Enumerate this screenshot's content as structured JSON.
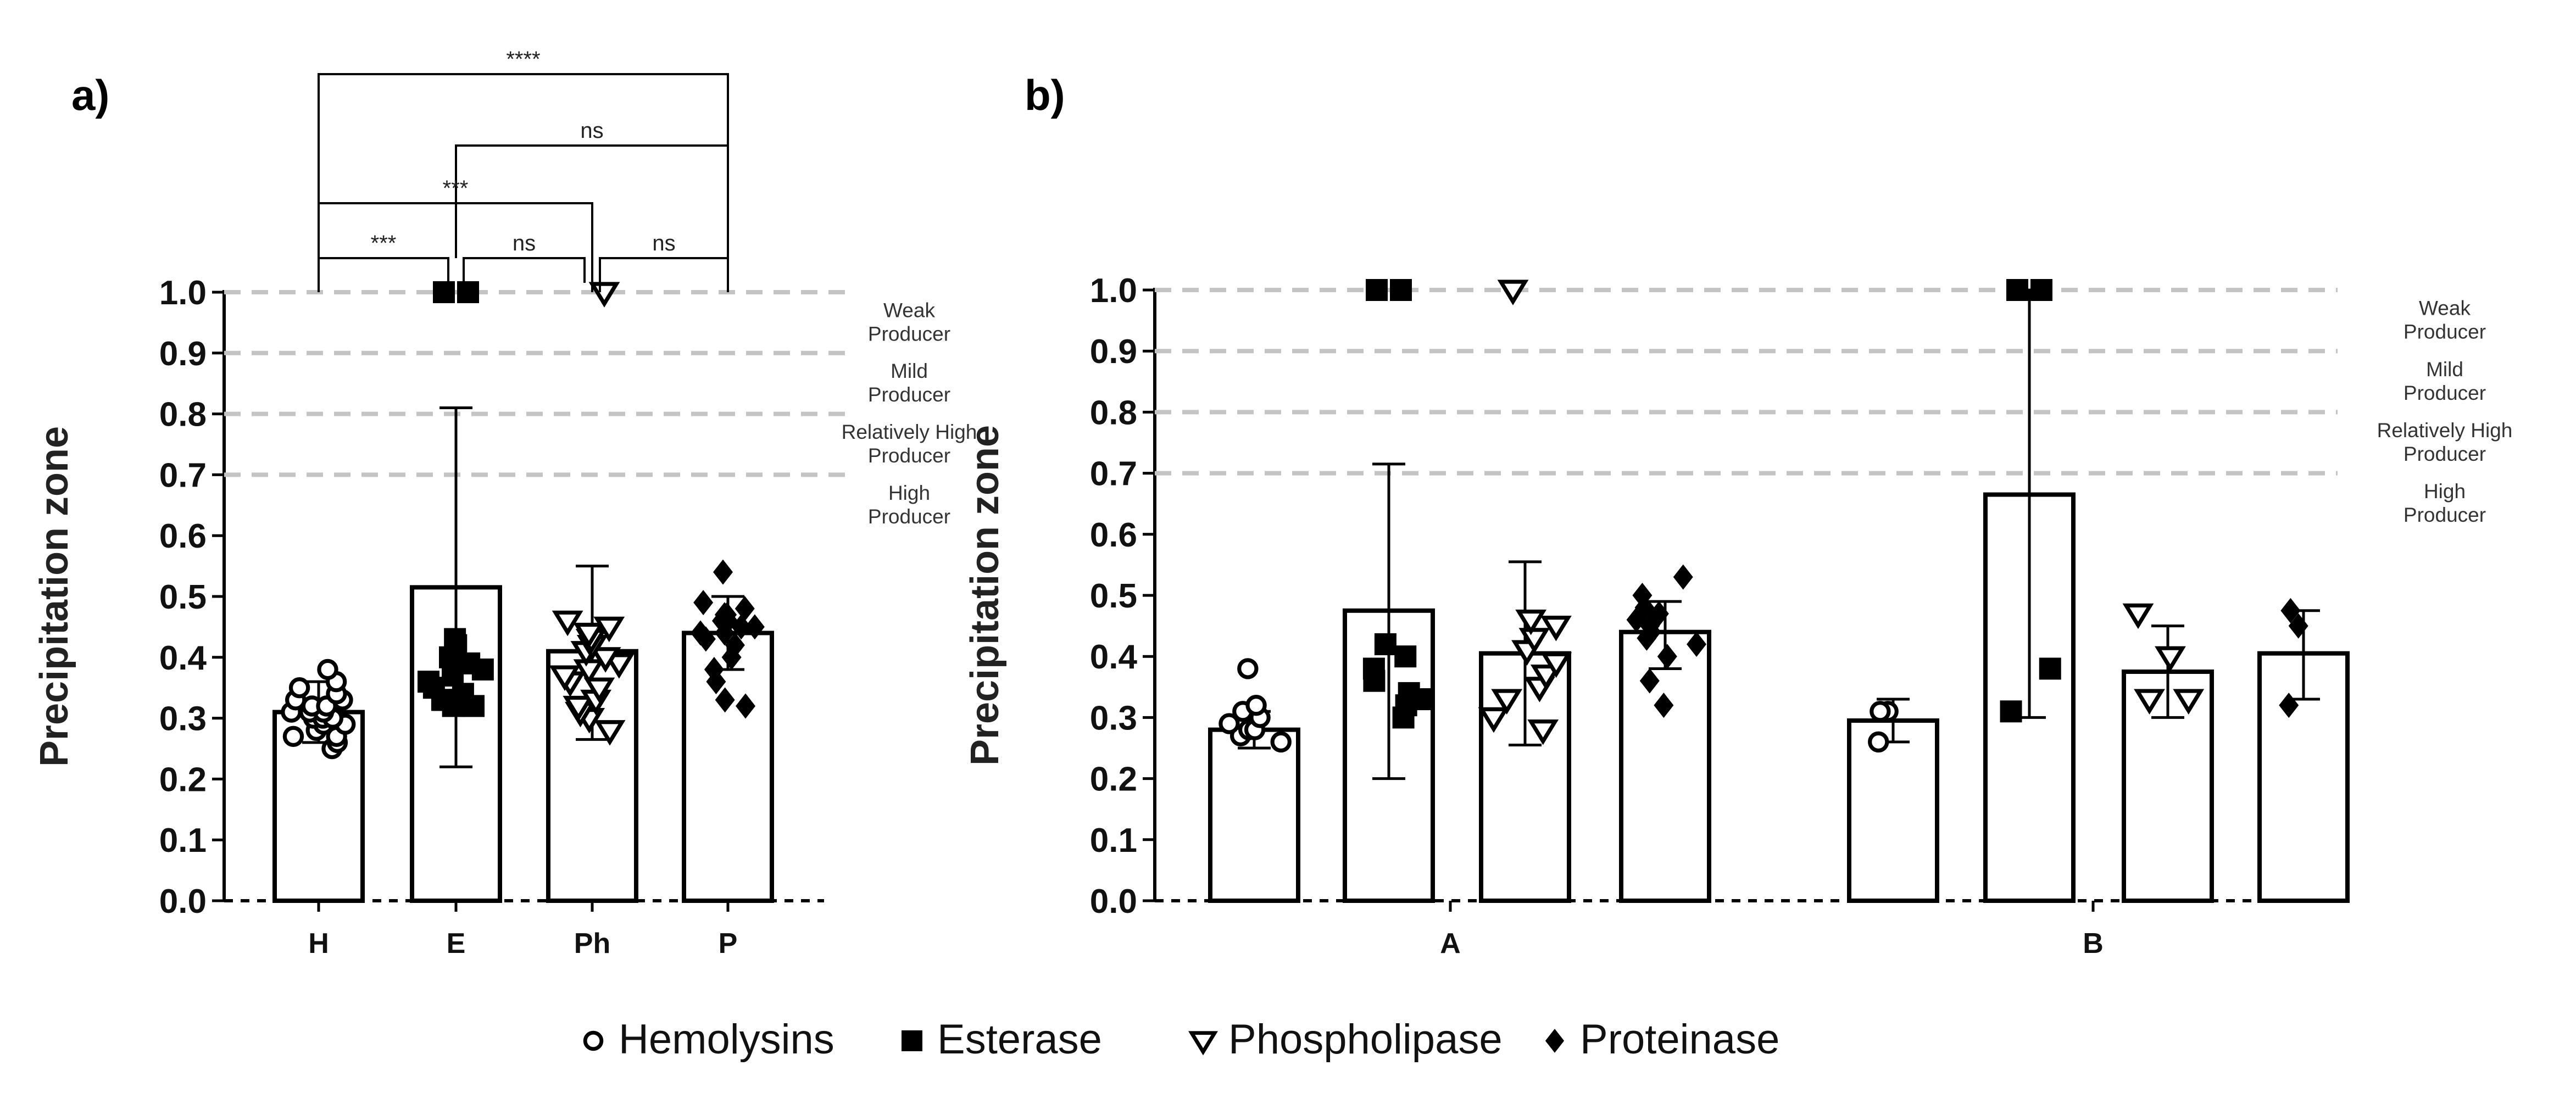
{
  "chart_data": [
    {
      "panel": "a)",
      "type": "bar",
      "ylabel": "Precipitation zone",
      "ylim": [
        0,
        1.0
      ],
      "yticks": [
        "0.0",
        "0.1",
        "0.2",
        "0.3",
        "0.4",
        "0.5",
        "0.6",
        "0.7",
        "0.8",
        "0.9",
        "1.0"
      ],
      "categories": [
        "H",
        "E",
        "Ph",
        "P"
      ],
      "values": [
        0.31,
        0.515,
        0.41,
        0.44
      ],
      "errors": [
        [
          0.26,
          0.36
        ],
        [
          0.22,
          0.81
        ],
        [
          0.265,
          0.55
        ],
        [
          0.38,
          0.5
        ]
      ],
      "markers": [
        "circle",
        "square",
        "triangle",
        "diamond"
      ],
      "points": [
        [
          0.25,
          0.26,
          0.27,
          0.27,
          0.28,
          0.29,
          0.29,
          0.3,
          0.3,
          0.3,
          0.31,
          0.31,
          0.31,
          0.32,
          0.32,
          0.33,
          0.33,
          0.34,
          0.35,
          0.36,
          0.38
        ],
        [
          0.32,
          0.32,
          0.33,
          0.33,
          0.33,
          0.34,
          0.35,
          0.36,
          0.37,
          0.38,
          0.39,
          0.4,
          0.42,
          0.43,
          1.0,
          1.0,
          1.0,
          1.0
        ],
        [
          0.28,
          0.3,
          0.31,
          0.32,
          0.33,
          0.35,
          0.36,
          0.37,
          0.38,
          0.39,
          0.4,
          0.41,
          0.42,
          0.43,
          0.44,
          0.45,
          0.46,
          1.0
        ],
        [
          0.32,
          0.33,
          0.36,
          0.38,
          0.4,
          0.42,
          0.43,
          0.44,
          0.44,
          0.45,
          0.45,
          0.46,
          0.46,
          0.47,
          0.47,
          0.48,
          0.49,
          0.54
        ]
      ],
      "reference_lines": [
        1.0,
        0.9,
        0.8,
        0.7
      ],
      "zone_labels": [
        [
          "Weak",
          "Producer"
        ],
        [
          "Mild",
          "Producer"
        ],
        [
          "Relatively High",
          "Producer"
        ],
        [
          "High",
          "Producer"
        ]
      ],
      "comparisons": [
        {
          "from": "H",
          "to": "P",
          "label": "****"
        },
        {
          "from": "E",
          "to": "P",
          "label": "ns"
        },
        {
          "from": "H",
          "to": "Ph",
          "label": "***"
        },
        {
          "from": "H",
          "to": "E",
          "label": "***"
        },
        {
          "from": "E",
          "to": "Ph",
          "label": "ns"
        },
        {
          "from": "Ph",
          "to": "P",
          "label": "ns"
        }
      ]
    },
    {
      "panel": "b)",
      "type": "bar",
      "ylabel": "Precipitation zone",
      "ylim": [
        0,
        1.0
      ],
      "yticks": [
        "0.0",
        "0.1",
        "0.2",
        "0.3",
        "0.4",
        "0.5",
        "0.6",
        "0.7",
        "0.8",
        "0.9",
        "1.0"
      ],
      "groups": [
        "A",
        "B"
      ],
      "series": [
        {
          "name": "Hemolysins",
          "marker": "circle",
          "values": [
            0.28,
            0.295
          ],
          "errors": [
            [
              0.25,
              0.31
            ],
            [
              0.26,
              0.33
            ]
          ],
          "points": [
            [
              0.26,
              0.27,
              0.28,
              0.28,
              0.29,
              0.3,
              0.31,
              0.32,
              0.38
            ],
            [
              0.26,
              0.31,
              0.31
            ]
          ]
        },
        {
          "name": "Esterase",
          "marker": "square",
          "values": [
            0.475,
            0.665
          ],
          "errors": [
            [
              0.2,
              0.715
            ],
            [
              0.3,
              1.0
            ]
          ],
          "points": [
            [
              0.3,
              0.32,
              0.33,
              0.34,
              0.36,
              0.38,
              0.4,
              0.42,
              1.0,
              1.0
            ],
            [
              0.31,
              0.38,
              1.0,
              1.0
            ]
          ]
        },
        {
          "name": "Phospholipase",
          "marker": "triangle",
          "values": [
            0.405,
            0.375
          ],
          "errors": [
            [
              0.255,
              0.555
            ],
            [
              0.3,
              0.45
            ]
          ],
          "points": [
            [
              0.28,
              0.3,
              0.33,
              0.35,
              0.37,
              0.39,
              0.41,
              0.43,
              0.45,
              0.46,
              1.0
            ],
            [
              0.33,
              0.33,
              0.4,
              0.47
            ]
          ]
        },
        {
          "name": "Proteinase",
          "marker": "diamond",
          "values": [
            0.44,
            0.405
          ],
          "errors": [
            [
              0.38,
              0.49
            ],
            [
              0.33,
              0.475
            ]
          ],
          "points": [
            [
              0.32,
              0.36,
              0.4,
              0.42,
              0.43,
              0.44,
              0.45,
              0.46,
              0.47,
              0.48,
              0.5,
              0.53
            ],
            [
              0.32,
              0.45,
              0.475
            ]
          ]
        }
      ],
      "reference_lines": [
        1.0,
        0.9,
        0.8,
        0.7
      ],
      "zone_labels": [
        [
          "Weak",
          "Producer"
        ],
        [
          "Mild",
          "Producer"
        ],
        [
          "Relatively High",
          "Producer"
        ],
        [
          "High",
          "Producer"
        ]
      ]
    }
  ],
  "legend": [
    {
      "label": "Hemolysins",
      "marker": "circle"
    },
    {
      "label": "Esterase",
      "marker": "square"
    },
    {
      "label": "Phospholipase",
      "marker": "triangle"
    },
    {
      "label": "Proteinase",
      "marker": "diamond"
    }
  ]
}
